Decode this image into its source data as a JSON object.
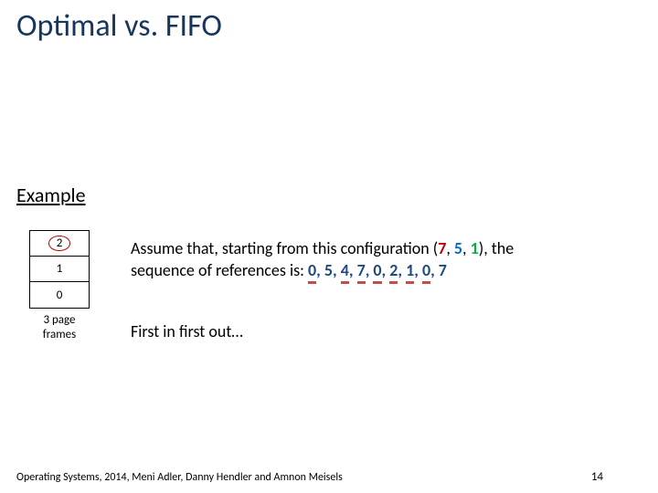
{
  "title": "Optimal vs. FIFO",
  "example_label": "Example",
  "frames": {
    "cells": [
      "2",
      "1",
      "0"
    ],
    "label": "3 page frames",
    "oval_color": "#c00000",
    "border_color": "#000000"
  },
  "body": {
    "line1": "Assume that, starting from this configuration (",
    "config_7": "7",
    "config_comma1": ", ",
    "config_5": "5",
    "config_comma2": ", ",
    "config_1": "1",
    "config_close": ")",
    "line1_tail": ", the",
    "line2_lead": "sequence of references is: ",
    "seq": [
      {
        "n": "0",
        "u": true
      },
      {
        "n": "5",
        "u": false
      },
      {
        "n": "4",
        "u": true
      },
      {
        "n": "7",
        "u": true
      },
      {
        "n": "0",
        "u": true
      },
      {
        "n": "2",
        "u": true
      },
      {
        "n": "1",
        "u": true
      },
      {
        "n": "0",
        "u": true
      },
      {
        "n": "7",
        "u": false
      }
    ],
    "seq_text_color": "#1f497d",
    "underline_color": "#c0504d"
  },
  "first_line": "First in first out…",
  "footer": "Operating Systems, 2014, Meni Adler, Danny Hendler and Amnon Meisels",
  "page_number": "14",
  "colors": {
    "title": "#17365d",
    "c7": "#c00000",
    "c5": "#0070c0",
    "c1": "#00b050",
    "background": "#ffffff"
  }
}
